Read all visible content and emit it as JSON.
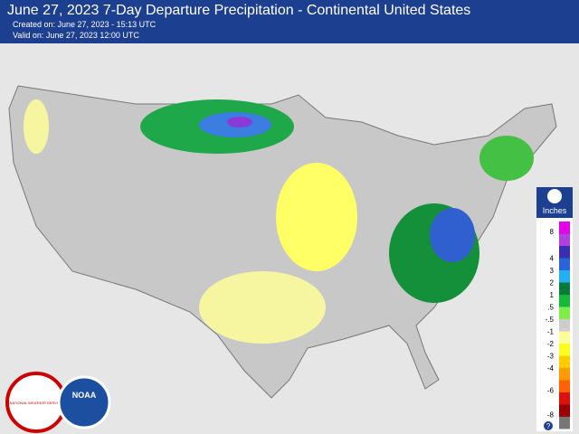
{
  "header": {
    "title": "June 27, 2023 7-Day Departure Precipitation - Continental United States",
    "created": "Created on: June 27, 2023 - 15:13 UTC",
    "valid": "Valid on: June 27, 2023 12:00 UTC"
  },
  "legend": {
    "title": "Inches",
    "labels": [
      "8",
      "4",
      "3",
      "2",
      "1",
      ".5",
      "-.5",
      "-1",
      "-2",
      "-3",
      "-4",
      "-6",
      "-8"
    ],
    "help": "?"
  },
  "logos": {
    "nws": "NATIONAL WEATHER SERVICE",
    "noaa": "NOAA"
  }
}
